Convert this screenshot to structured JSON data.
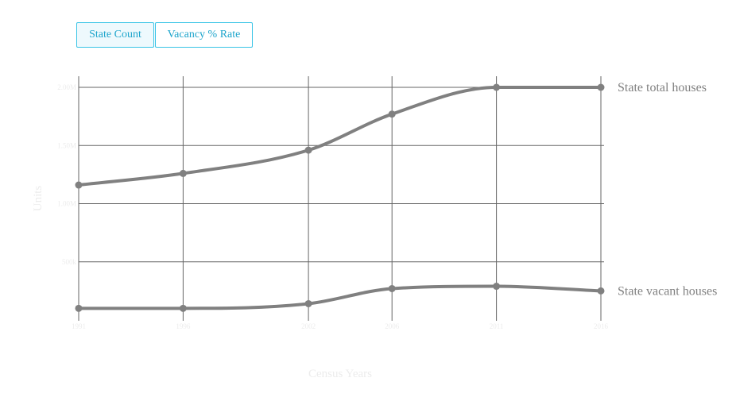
{
  "toggles": {
    "state_count": "State Count",
    "vacancy_rate": "Vacancy % Rate"
  },
  "colors": {
    "line": "#808080",
    "grid": "#666666",
    "axis_text": "#ececec",
    "button_border": "#39c4e6",
    "button_text": "#1ea5cc"
  },
  "chart_data": {
    "type": "line",
    "xlabel": "Census Years",
    "ylabel": "Units",
    "x": [
      1991,
      1996,
      2002,
      2006,
      2011,
      2016
    ],
    "x_tick_labels": [
      "1991",
      "1996",
      "2002",
      "2006",
      "2011",
      "2016"
    ],
    "y_ticks": [
      500000,
      1000000,
      1500000,
      2000000
    ],
    "y_tick_labels": [
      "500k",
      "1.00M",
      "1.50M",
      "2.00M"
    ],
    "ylim": [
      0,
      2100000
    ],
    "grid": true,
    "series": [
      {
        "name": "State total houses",
        "values": [
          1160000,
          1260000,
          1460000,
          1770000,
          2000000,
          2000000
        ]
      },
      {
        "name": "State vacant houses",
        "values": [
          100000,
          100000,
          140000,
          270000,
          290000,
          250000
        ]
      }
    ]
  }
}
